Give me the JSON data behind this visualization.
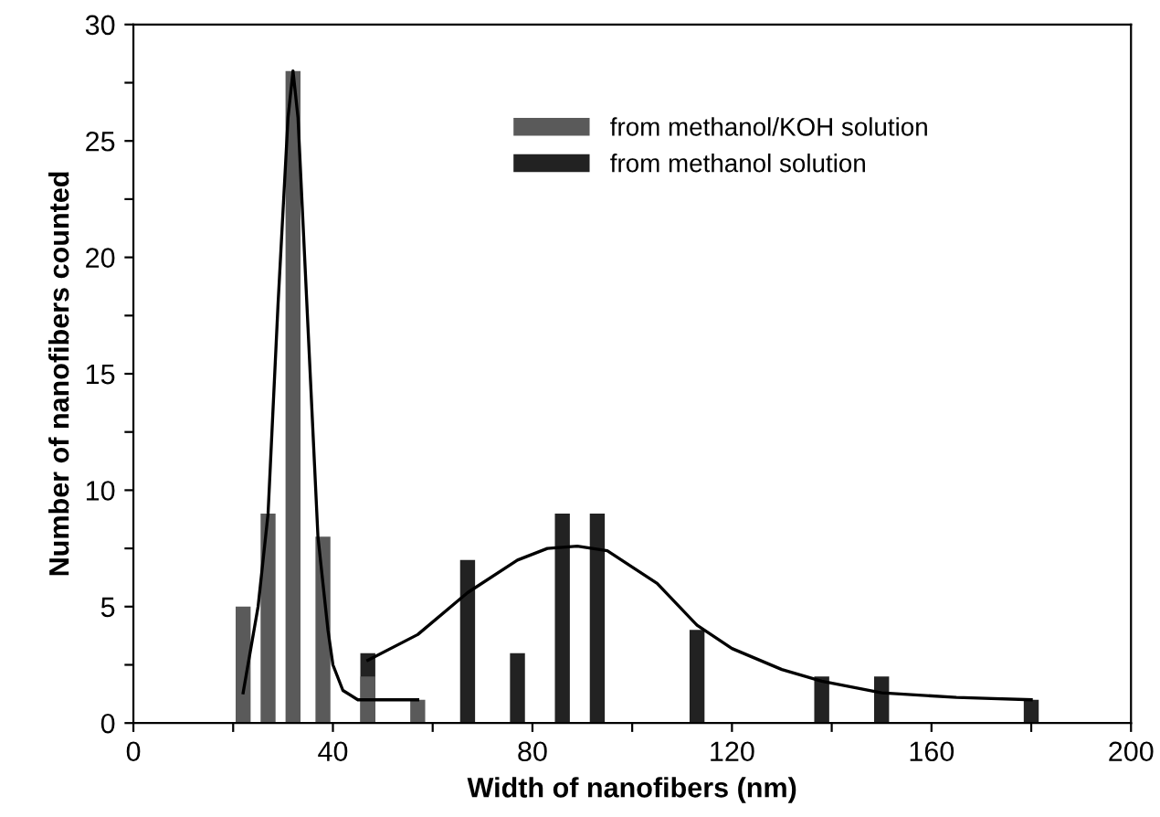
{
  "chart_data": {
    "type": "bar",
    "xlabel": "Width of nanofibers (nm)",
    "ylabel": "Number of nanofibers counted",
    "xlim": [
      0,
      200
    ],
    "ylim": [
      0,
      30
    ],
    "xticks": [
      0,
      {
        "value": 20,
        "label": null
      },
      40,
      {
        "value": 60,
        "label": null
      },
      80,
      {
        "value": 100,
        "label": null
      },
      120,
      {
        "value": 140,
        "label": null
      },
      160,
      {
        "value": 180,
        "label": null
      },
      200
    ],
    "yticks": [
      0,
      {
        "value": 2.5,
        "label": null
      },
      5,
      {
        "value": 7.5,
        "label": null
      },
      10,
      {
        "value": 12.5,
        "label": null
      },
      15,
      {
        "value": 17.5,
        "label": null
      },
      20,
      {
        "value": 22.5,
        "label": null
      },
      25,
      {
        "value": 27.5,
        "label": null
      },
      30
    ],
    "grid": false,
    "legend": "top right",
    "series": [
      {
        "name": "from methanol/KOH solution",
        "color": "#5a5a5a",
        "x": [
          22,
          27,
          32,
          38,
          47,
          57
        ],
        "values": [
          5,
          9,
          28,
          8,
          2,
          1
        ]
      },
      {
        "name": "from methanol solution",
        "color": "#222222",
        "x": [
          47,
          67,
          77,
          86,
          93,
          113,
          138,
          150,
          180
        ],
        "values": [
          3,
          7,
          3,
          9,
          9,
          4,
          2,
          2,
          1
        ]
      },
      {
        "type": "line",
        "color": "#000000",
        "x": [
          22,
          25,
          27,
          29,
          31,
          32,
          33,
          35,
          37,
          39,
          40,
          42,
          45,
          50,
          57
        ],
        "values": [
          1.3,
          5,
          9,
          18,
          26,
          28,
          26,
          17,
          8,
          4,
          2.5,
          1.4,
          1,
          1,
          1
        ]
      },
      {
        "type": "line",
        "color": "#000000",
        "x": [
          47,
          57,
          67,
          77,
          83,
          89,
          95,
          105,
          113,
          120,
          130,
          138,
          150,
          165,
          180
        ],
        "values": [
          2.7,
          3.8,
          5.6,
          7,
          7.5,
          7.6,
          7.4,
          6,
          4.2,
          3.2,
          2.3,
          1.8,
          1.3,
          1.1,
          1
        ]
      }
    ]
  }
}
